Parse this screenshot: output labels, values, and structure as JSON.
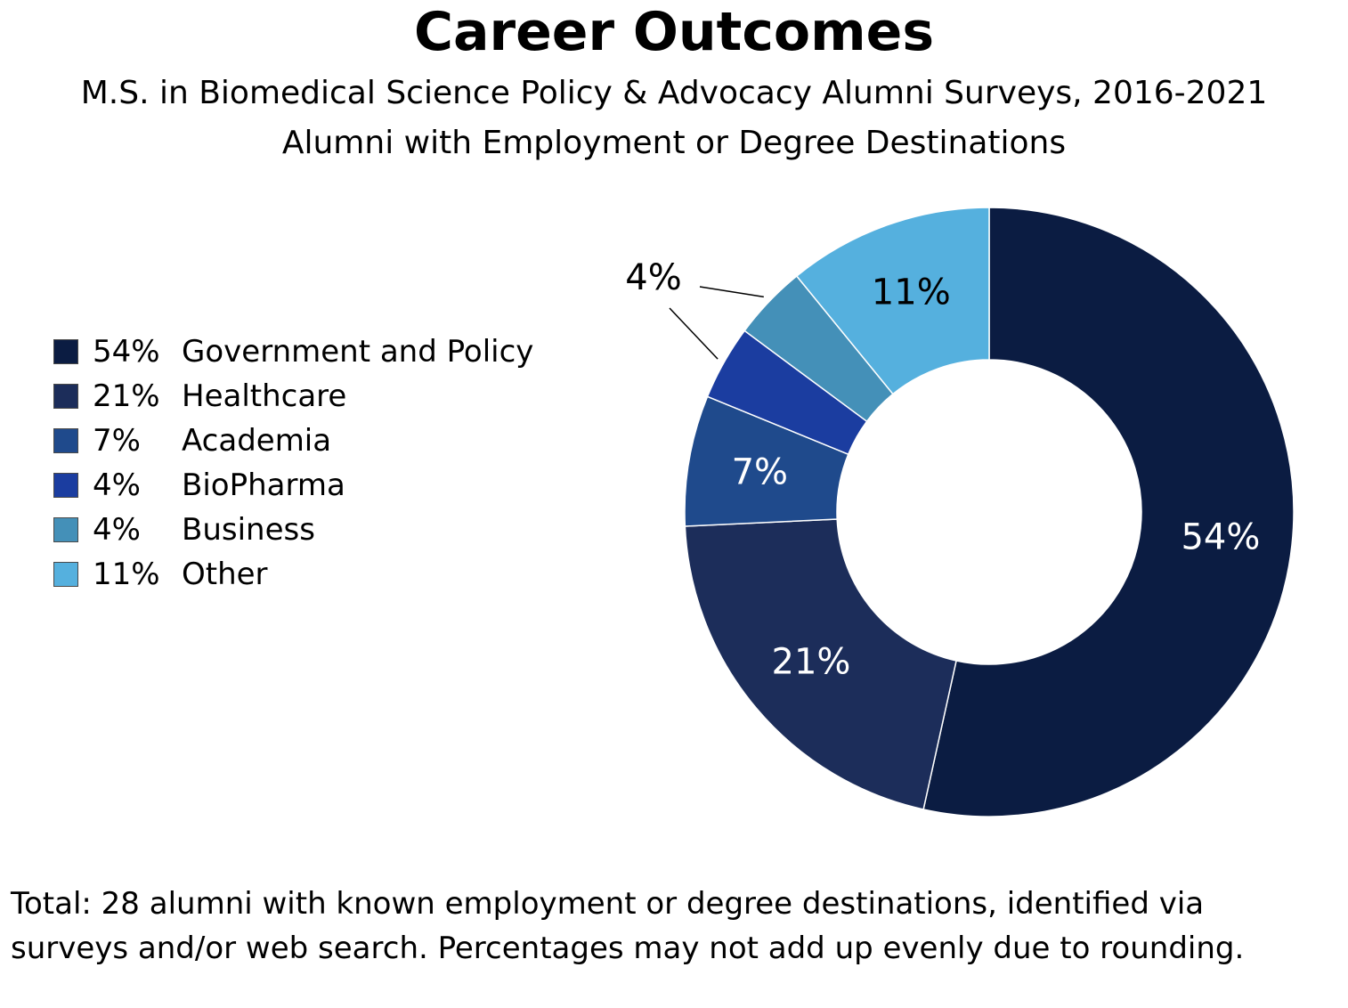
{
  "title": "Career Outcomes",
  "subtitle_line1": "M.S. in Biomedical Science Policy & Advocacy Alumni Surveys, 2016-2021",
  "subtitle_line2": "Alumni with Employment or Degree Destinations",
  "note_line1": "Total: 28 alumni with known employment or degree destinations, identified via",
  "note_line2": "surveys and/or web search. Percentages may not add up evenly due to rounding.",
  "chart_data": {
    "type": "pie",
    "variant": "donut",
    "legend_position": "left",
    "start_angle": "12 o'clock",
    "direction": "clockwise",
    "slices": [
      {
        "percent_label": "54%",
        "name": "Government and Policy",
        "value": 54,
        "color": "#0b1c42",
        "label_color": "#ffffff",
        "label_placement": "inside"
      },
      {
        "percent_label": "21%",
        "name": "Healthcare",
        "value": 21,
        "color": "#1c2d5a",
        "label_color": "#ffffff",
        "label_placement": "inside"
      },
      {
        "percent_label": "7%",
        "name": "Academia",
        "value": 7,
        "color": "#1f4a8c",
        "label_color": "#ffffff",
        "label_placement": "inside"
      },
      {
        "percent_label": "4%",
        "name": "BioPharma",
        "value": 4,
        "color": "#1b3da0",
        "label_color": "#000000",
        "label_placement": "outside-shared"
      },
      {
        "percent_label": "4%",
        "name": "Business",
        "value": 4,
        "color": "#4490b8",
        "label_color": "#000000",
        "label_placement": "outside-shared"
      },
      {
        "percent_label": "11%",
        "name": "Other",
        "value": 11,
        "color": "#55b0de",
        "label_color": "#000000",
        "label_placement": "inside"
      }
    ],
    "shared_outside_label": "4%"
  }
}
